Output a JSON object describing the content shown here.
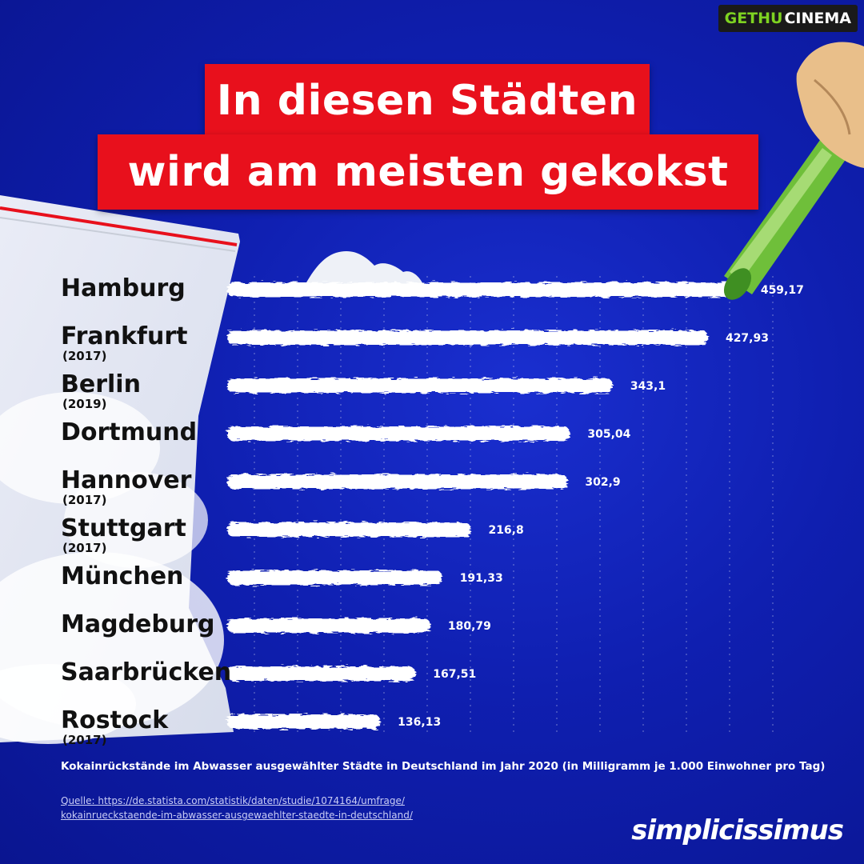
{
  "watermark": {
    "part1": "GETHU",
    "part2": "CINEMA"
  },
  "title": {
    "line1": "In diesen Städten",
    "line2": "wird am meisten gekokst"
  },
  "colors": {
    "background": "#0f1fb0",
    "title_bg": "#e8101c",
    "bar": "#ffffff",
    "text_dark": "#111111",
    "bag": "#e8ecf3",
    "bag_stripe": "#e8101c"
  },
  "chart_data": {
    "type": "bar",
    "orientation": "horizontal",
    "categories": [
      "Hamburg",
      "Frankfurt",
      "Berlin",
      "Dortmund",
      "Hannover",
      "Stuttgart",
      "München",
      "Magdeburg",
      "Saarbrücken",
      "Rostock"
    ],
    "years": [
      "",
      "(2017)",
      "(2019)",
      "",
      "(2017)",
      "(2017)",
      "",
      "",
      "",
      "(2017)"
    ],
    "values": [
      459.17,
      427.93,
      343.1,
      305.04,
      302.9,
      216.8,
      191.33,
      180.79,
      167.51,
      136.13
    ],
    "value_labels": [
      "459,17",
      "427,93",
      "343,1",
      "305,04",
      "302,9",
      "216,8",
      "191,33",
      "180,79",
      "167,51",
      "136,13"
    ],
    "grid": true
  },
  "caption": "Kokainrückstände im Abwasser ausgewählter Städte in Deutschland im Jahr 2020 (in Milligramm je 1.000 Einwohner pro Tag)",
  "source": {
    "line1": "Quelle: https://de.statista.com/statistik/daten/studie/1074164/umfrage/",
    "line2": "kokainrueckstaende-im-abwasser-ausgewaehlter-staedte-in-deutschland/"
  },
  "brand": "simplicissimus"
}
